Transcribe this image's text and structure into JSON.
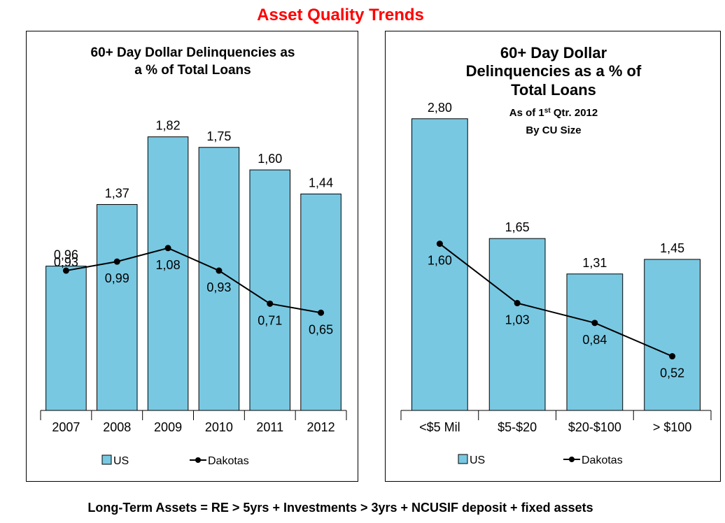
{
  "page_title": "Asset Quality Trends",
  "footnote": "Long-Term Assets = RE > 5yrs + Investments > 3yrs + NCUSIF deposit  + fixed assets",
  "colors": {
    "title": "#ff0000",
    "bar": "#78c8e2",
    "line": "#000000"
  },
  "chart_data": [
    {
      "type": "bar",
      "title_lines": [
        "60+ Day Dollar Delinquencies as",
        "a % of Total Loans"
      ],
      "subtitle_lines": [],
      "categories": [
        "2007",
        "2008",
        "2009",
        "2010",
        "2011",
        "2012"
      ],
      "series": [
        {
          "name": "US",
          "kind": "bar",
          "values": [
            0.96,
            1.37,
            1.82,
            1.75,
            1.6,
            1.44
          ],
          "labels": [
            "0,96",
            "1,37",
            "1,82",
            "1,75",
            "1,60",
            "1,44"
          ]
        },
        {
          "name": "Dakotas",
          "kind": "line",
          "values": [
            0.93,
            0.99,
            1.08,
            0.93,
            0.71,
            0.65
          ],
          "labels": [
            "0,93",
            "0,99",
            "1,08",
            "0,93",
            "0,71",
            "0,65"
          ]
        }
      ],
      "ylim": [
        0,
        2
      ],
      "legend_position": "bottom"
    },
    {
      "type": "bar",
      "title_lines": [
        "60+ Day Dollar",
        "Delinquencies as a % of",
        "Total Loans"
      ],
      "subtitle_lines": [
        "As of 1st Qtr. 2012",
        "By CU Size"
      ],
      "categories": [
        "<$5 Mil",
        "$5-$20",
        "$20-$100",
        "> $100"
      ],
      "series": [
        {
          "name": "US",
          "kind": "bar",
          "values": [
            2.8,
            1.65,
            1.31,
            1.45
          ],
          "labels": [
            "2,80",
            "1,65",
            "1,31",
            "1,45"
          ]
        },
        {
          "name": "Dakotas",
          "kind": "line",
          "values": [
            1.6,
            1.03,
            0.84,
            0.52
          ],
          "labels": [
            "1,60",
            "1,03",
            "0,84",
            "0,52"
          ]
        }
      ],
      "ylim": [
        0,
        3
      ],
      "legend_position": "bottom"
    }
  ]
}
